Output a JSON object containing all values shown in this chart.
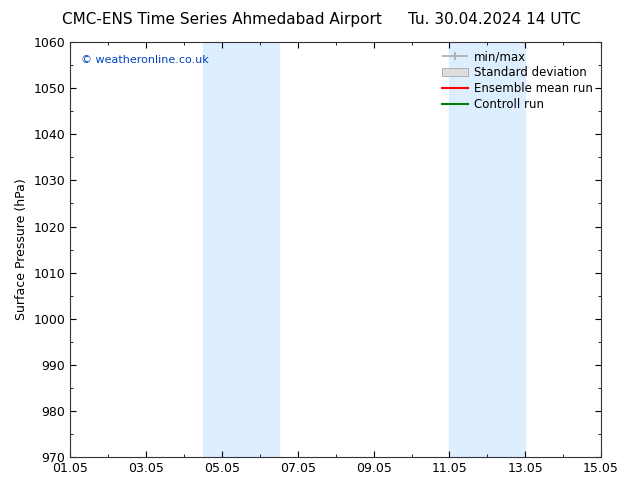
{
  "title_left": "CMC-ENS Time Series Ahmedabad Airport",
  "title_right": "Tu. 30.04.2024 14 UTC",
  "ylabel": "Surface Pressure (hPa)",
  "ylim": [
    970,
    1060
  ],
  "yticks": [
    970,
    980,
    990,
    1000,
    1010,
    1020,
    1030,
    1040,
    1050,
    1060
  ],
  "xtick_labels": [
    "01.05",
    "03.05",
    "05.05",
    "07.05",
    "09.05",
    "11.05",
    "13.05",
    "15.05"
  ],
  "xtick_positions": [
    0,
    2,
    4,
    6,
    8,
    10,
    12,
    14
  ],
  "xlim": [
    0,
    14
  ],
  "shade_bands": [
    {
      "x_start": 3.5,
      "x_end": 5.5,
      "color": "#ddeeff"
    },
    {
      "x_start": 10.0,
      "x_end": 12.0,
      "color": "#ddeeff"
    }
  ],
  "watermark": "© weatheronline.co.uk",
  "legend_labels": [
    "min/max",
    "Standard deviation",
    "Ensemble mean run",
    "Controll run"
  ],
  "legend_line_colors": [
    "#aaaaaa",
    "#cccccc",
    "#ff0000",
    "#008000"
  ],
  "background_color": "#ffffff",
  "plot_bg_color": "#ffffff",
  "title_fontsize": 11,
  "tick_fontsize": 9,
  "ylabel_fontsize": 9
}
